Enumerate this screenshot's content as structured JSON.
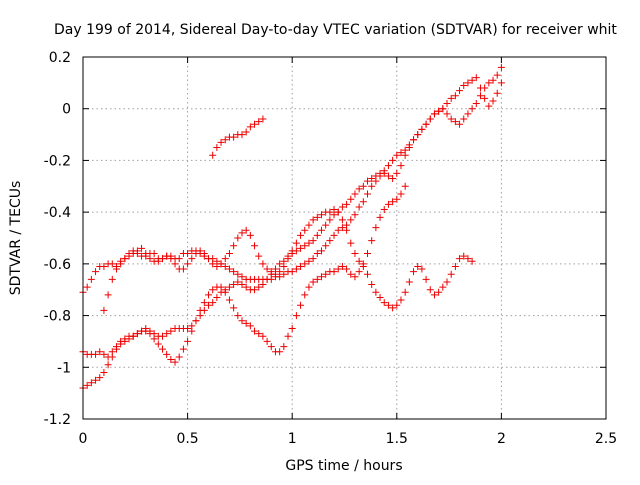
{
  "chart_data": {
    "type": "scatter",
    "title": "Day 199 of 2014, Sidereal Day-to-day VTEC variation (SDTVAR) for receiver whit",
    "xlabel": "GPS time / hours",
    "ylabel": "SDTVAR / TECUs",
    "xlim": [
      0,
      2.5
    ],
    "ylim": [
      -1.2,
      0.2
    ],
    "x_ticks": [
      0,
      0.5,
      1,
      1.5,
      2,
      2.5
    ],
    "x_tick_labels": [
      "0",
      "0.5",
      "1",
      "1.5",
      "2",
      "2.5"
    ],
    "y_ticks": [
      0.2,
      0,
      -0.2,
      -0.4,
      -0.6,
      -0.8,
      -1,
      -1.2
    ],
    "y_tick_labels": [
      "0.2",
      "0",
      "-0.2",
      "-0.4",
      "-0.6",
      "-0.8",
      "-1",
      "-1.2"
    ],
    "grid": true,
    "marker": "+",
    "marker_color": "#ee0000",
    "series": [
      {
        "x": [
          0.0,
          0.02,
          0.04,
          0.06,
          0.08,
          0.1,
          0.12,
          0.14,
          0.16,
          0.18,
          0.2,
          0.22,
          0.24,
          0.26,
          0.28,
          0.3,
          0.32,
          0.34,
          0.36,
          0.38,
          0.4,
          0.42,
          0.44,
          0.46,
          0.48,
          0.5,
          0.52,
          0.54,
          0.56,
          0.58,
          0.6,
          0.62,
          0.64,
          0.66,
          0.68,
          0.7,
          0.72,
          0.74,
          0.76,
          0.78,
          0.8,
          0.82,
          0.84,
          0.86,
          0.88,
          0.9,
          0.92,
          0.94,
          0.96,
          0.98,
          1.0,
          1.02,
          1.04,
          1.06,
          1.08,
          1.1,
          1.12,
          1.14,
          1.16,
          1.18,
          1.2,
          1.22,
          1.24,
          1.26,
          1.28,
          1.3,
          1.32,
          1.34,
          1.36,
          1.38,
          1.4,
          1.42,
          1.44,
          1.46,
          1.48,
          1.5,
          1.52,
          1.54,
          1.56,
          1.58,
          1.6,
          1.62,
          1.64,
          1.66,
          1.68,
          1.7,
          1.72,
          1.74,
          1.76,
          1.78,
          1.8,
          1.82,
          1.84,
          1.86,
          1.88,
          1.9,
          1.92,
          1.94,
          1.96,
          1.98,
          2.0
        ],
        "y": [
          -0.71,
          -0.69,
          -0.66,
          -0.63,
          -0.61,
          -0.61,
          -0.6,
          -0.6,
          -0.61,
          -0.59,
          -0.58,
          -0.57,
          -0.56,
          -0.56,
          -0.57,
          -0.57,
          -0.56,
          -0.56,
          -0.58,
          -0.58,
          -0.57,
          -0.57,
          -0.58,
          -0.58,
          -0.56,
          -0.56,
          -0.55,
          -0.55,
          -0.56,
          -0.57,
          -0.58,
          -0.58,
          -0.59,
          -0.6,
          -0.61,
          -0.62,
          -0.63,
          -0.64,
          -0.65,
          -0.66,
          -0.66,
          -0.66,
          -0.66,
          -0.66,
          -0.66,
          -0.66,
          -0.65,
          -0.65,
          -0.64,
          -0.63,
          -0.63,
          -0.62,
          -0.61,
          -0.6,
          -0.59,
          -0.58,
          -0.56,
          -0.55,
          -0.53,
          -0.51,
          -0.49,
          -0.47,
          -0.46,
          -0.45,
          -0.43,
          -0.41,
          -0.38,
          -0.36,
          -0.33,
          -0.3,
          -0.28,
          -0.26,
          -0.25,
          -0.26,
          -0.27,
          -0.25,
          -0.22,
          -0.18,
          -0.15,
          -0.12,
          -0.1,
          -0.08,
          -0.06,
          -0.04,
          -0.02,
          -0.01,
          0.0,
          -0.02,
          -0.04,
          -0.05,
          -0.06,
          -0.04,
          -0.02,
          0.0,
          0.02,
          0.05,
          0.08,
          0.1,
          0.11,
          0.13,
          0.16
        ]
      },
      {
        "x": [
          0.0,
          0.02,
          0.04,
          0.06,
          0.08,
          0.1,
          0.12,
          0.14,
          0.16,
          0.18,
          0.2,
          0.22,
          0.24,
          0.26,
          0.28,
          0.3,
          0.32,
          0.34,
          0.36,
          0.38,
          0.4,
          0.42,
          0.44,
          0.46,
          0.48,
          0.5,
          0.52,
          0.54,
          0.56,
          0.58,
          0.6,
          0.62,
          0.64,
          0.66,
          0.68,
          0.7,
          0.72,
          0.74,
          0.76,
          0.78,
          0.8,
          0.82,
          0.84,
          0.86,
          0.88,
          0.9,
          0.92,
          0.94,
          0.96,
          0.98,
          1.0,
          1.02,
          1.04,
          1.06,
          1.08,
          1.1,
          1.12,
          1.14,
          1.16,
          1.18,
          1.2,
          1.22,
          1.24,
          1.26,
          1.28,
          1.3,
          1.32,
          1.34,
          1.36,
          1.38,
          1.4,
          1.42,
          1.44,
          1.46,
          1.48,
          1.5,
          1.52,
          1.54,
          1.56,
          1.58,
          1.6,
          1.62,
          1.64,
          1.66,
          1.68,
          1.7,
          1.72,
          1.74,
          1.76,
          1.78,
          1.8,
          1.82,
          1.84,
          1.86,
          1.88,
          1.9,
          1.92,
          1.94,
          1.96,
          1.98,
          2.0
        ],
        "y": [
          -0.94,
          -0.95,
          -0.95,
          -0.95,
          -0.94,
          -0.95,
          -0.96,
          -0.94,
          -0.92,
          -0.9,
          -0.89,
          -0.88,
          -0.88,
          -0.87,
          -0.86,
          -0.85,
          -0.86,
          -0.87,
          -0.88,
          -0.88,
          -0.87,
          -0.86,
          -0.85,
          -0.85,
          -0.85,
          -0.85,
          -0.84,
          -0.82,
          -0.8,
          -0.78,
          -0.76,
          -0.75,
          -0.73,
          -0.71,
          -0.7,
          -0.69,
          -0.68,
          -0.67,
          -0.68,
          -0.69,
          -0.7,
          -0.7,
          -0.69,
          -0.68,
          -0.66,
          -0.64,
          -0.62,
          -0.6,
          -0.59,
          -0.57,
          -0.56,
          -0.55,
          -0.54,
          -0.53,
          -0.52,
          -0.51,
          -0.49,
          -0.47,
          -0.45,
          -0.43,
          -0.41,
          -0.4,
          -0.38,
          -0.37,
          -0.35,
          -0.33,
          -0.31,
          -0.3,
          -0.28,
          -0.27,
          -0.26,
          -0.25,
          -0.24,
          -0.22,
          -0.2,
          -0.18,
          -0.17,
          -0.16,
          -0.14,
          -0.12,
          -0.1,
          -0.08,
          -0.06,
          -0.04,
          -0.02,
          -0.01,
          0.0,
          0.02,
          0.04,
          0.05,
          0.07,
          0.09,
          0.1,
          0.11,
          0.12,
          0.08,
          0.04,
          0.01,
          0.03,
          0.06,
          0.1
        ]
      },
      {
        "x": [
          0.0,
          0.02,
          0.04,
          0.06,
          0.08,
          0.1,
          0.12,
          0.14,
          0.16,
          0.18,
          0.2,
          0.22,
          0.24,
          0.26,
          0.28,
          0.3,
          0.32,
          0.34,
          0.36,
          0.38,
          0.4,
          0.42,
          0.44,
          0.46,
          0.48,
          0.5,
          0.52,
          0.54,
          0.56,
          0.58,
          0.6,
          0.62,
          0.64,
          0.66,
          0.68,
          0.7,
          0.72,
          0.74,
          0.76,
          0.78,
          0.8,
          0.82,
          0.84,
          0.86,
          0.88,
          0.9,
          0.92,
          0.94,
          0.96,
          0.98,
          1.0,
          1.02,
          1.04,
          1.06,
          1.08,
          1.1,
          1.12,
          1.14,
          1.16,
          1.18,
          1.2,
          1.22,
          1.24,
          1.26,
          1.28,
          1.3,
          1.32,
          1.34,
          1.36,
          1.38,
          1.4,
          1.42,
          1.44,
          1.46,
          1.48,
          1.5,
          1.52,
          1.54
        ],
        "y": [
          -1.08,
          -1.07,
          -1.06,
          -1.05,
          -1.04,
          -1.02,
          -0.99,
          -0.96,
          -0.93,
          -0.91,
          -0.9,
          -0.89,
          -0.88,
          -0.87,
          -0.86,
          -0.86,
          -0.87,
          -0.89,
          -0.91,
          -0.93,
          -0.95,
          -0.97,
          -0.98,
          -0.96,
          -0.93,
          -0.9,
          -0.86,
          -0.82,
          -0.78,
          -0.75,
          -0.72,
          -0.7,
          -0.69,
          -0.69,
          -0.71,
          -0.74,
          -0.77,
          -0.8,
          -0.82,
          -0.83,
          -0.84,
          -0.86,
          -0.87,
          -0.88,
          -0.9,
          -0.92,
          -0.94,
          -0.94,
          -0.92,
          -0.88,
          -0.85,
          -0.8,
          -0.76,
          -0.72,
          -0.69,
          -0.67,
          -0.66,
          -0.65,
          -0.64,
          -0.63,
          -0.63,
          -0.62,
          -0.61,
          -0.62,
          -0.64,
          -0.65,
          -0.63,
          -0.6,
          -0.56,
          -0.51,
          -0.46,
          -0.42,
          -0.39,
          -0.37,
          -0.36,
          -0.35,
          -0.33,
          -0.3
        ]
      },
      {
        "x": [
          0.1,
          0.12,
          0.14,
          0.16,
          0.18,
          0.2,
          0.22,
          0.24,
          0.26,
          0.28,
          0.3,
          0.32,
          0.34,
          0.36,
          0.38,
          0.4,
          0.42,
          0.44,
          0.46,
          0.48,
          0.5,
          0.52,
          0.54,
          0.56,
          0.58,
          0.6,
          0.62,
          0.64,
          0.66,
          0.68,
          0.7,
          0.72,
          0.74,
          0.76,
          0.78,
          0.8,
          0.82,
          0.84,
          0.86,
          0.88,
          0.9,
          0.92,
          0.94,
          0.96,
          0.98,
          1.0,
          1.02,
          1.04,
          1.06,
          1.08,
          1.1,
          1.12,
          1.14,
          1.16,
          1.18,
          1.2,
          1.22,
          1.24,
          1.26,
          1.28,
          1.3,
          1.32,
          1.34,
          1.36,
          1.38,
          1.4,
          1.42,
          1.44,
          1.46,
          1.48,
          1.5,
          1.52,
          1.54,
          1.56,
          1.58,
          1.6,
          1.62,
          1.64,
          1.66,
          1.68,
          1.7,
          1.72,
          1.74,
          1.76,
          1.78,
          1.8,
          1.82,
          1.84,
          1.86
        ],
        "y": [
          -0.78,
          -0.72,
          -0.66,
          -0.62,
          -0.6,
          -0.58,
          -0.56,
          -0.55,
          -0.55,
          -0.54,
          -0.56,
          -0.58,
          -0.59,
          -0.59,
          -0.58,
          -0.57,
          -0.58,
          -0.6,
          -0.62,
          -0.62,
          -0.6,
          -0.58,
          -0.56,
          -0.55,
          -0.56,
          -0.58,
          -0.6,
          -0.61,
          -0.6,
          -0.58,
          -0.56,
          -0.53,
          -0.5,
          -0.48,
          -0.47,
          -0.49,
          -0.53,
          -0.57,
          -0.6,
          -0.62,
          -0.63,
          -0.64,
          -0.63,
          -0.61,
          -0.58,
          -0.55,
          -0.52,
          -0.49,
          -0.47,
          -0.45,
          -0.43,
          -0.42,
          -0.41,
          -0.4,
          -0.4,
          -0.39,
          -0.4,
          -0.43,
          -0.47,
          -0.52,
          -0.56,
          -0.59,
          -0.61,
          -0.64,
          -0.68,
          -0.71,
          -0.73,
          -0.75,
          -0.76,
          -0.77,
          -0.76,
          -0.74,
          -0.71,
          -0.67,
          -0.63,
          -0.61,
          -0.62,
          -0.66,
          -0.7,
          -0.72,
          -0.71,
          -0.69,
          -0.67,
          -0.64,
          -0.61,
          -0.58,
          -0.57,
          -0.58,
          -0.59
        ]
      },
      {
        "x": [
          0.62,
          0.64,
          0.66,
          0.68,
          0.7,
          0.72,
          0.74,
          0.76,
          0.78,
          0.8,
          0.82,
          0.84,
          0.86
        ],
        "y": [
          -0.18,
          -0.15,
          -0.13,
          -0.12,
          -0.11,
          -0.11,
          -0.1,
          -0.1,
          -0.09,
          -0.07,
          -0.06,
          -0.05,
          -0.04
        ]
      }
    ]
  }
}
